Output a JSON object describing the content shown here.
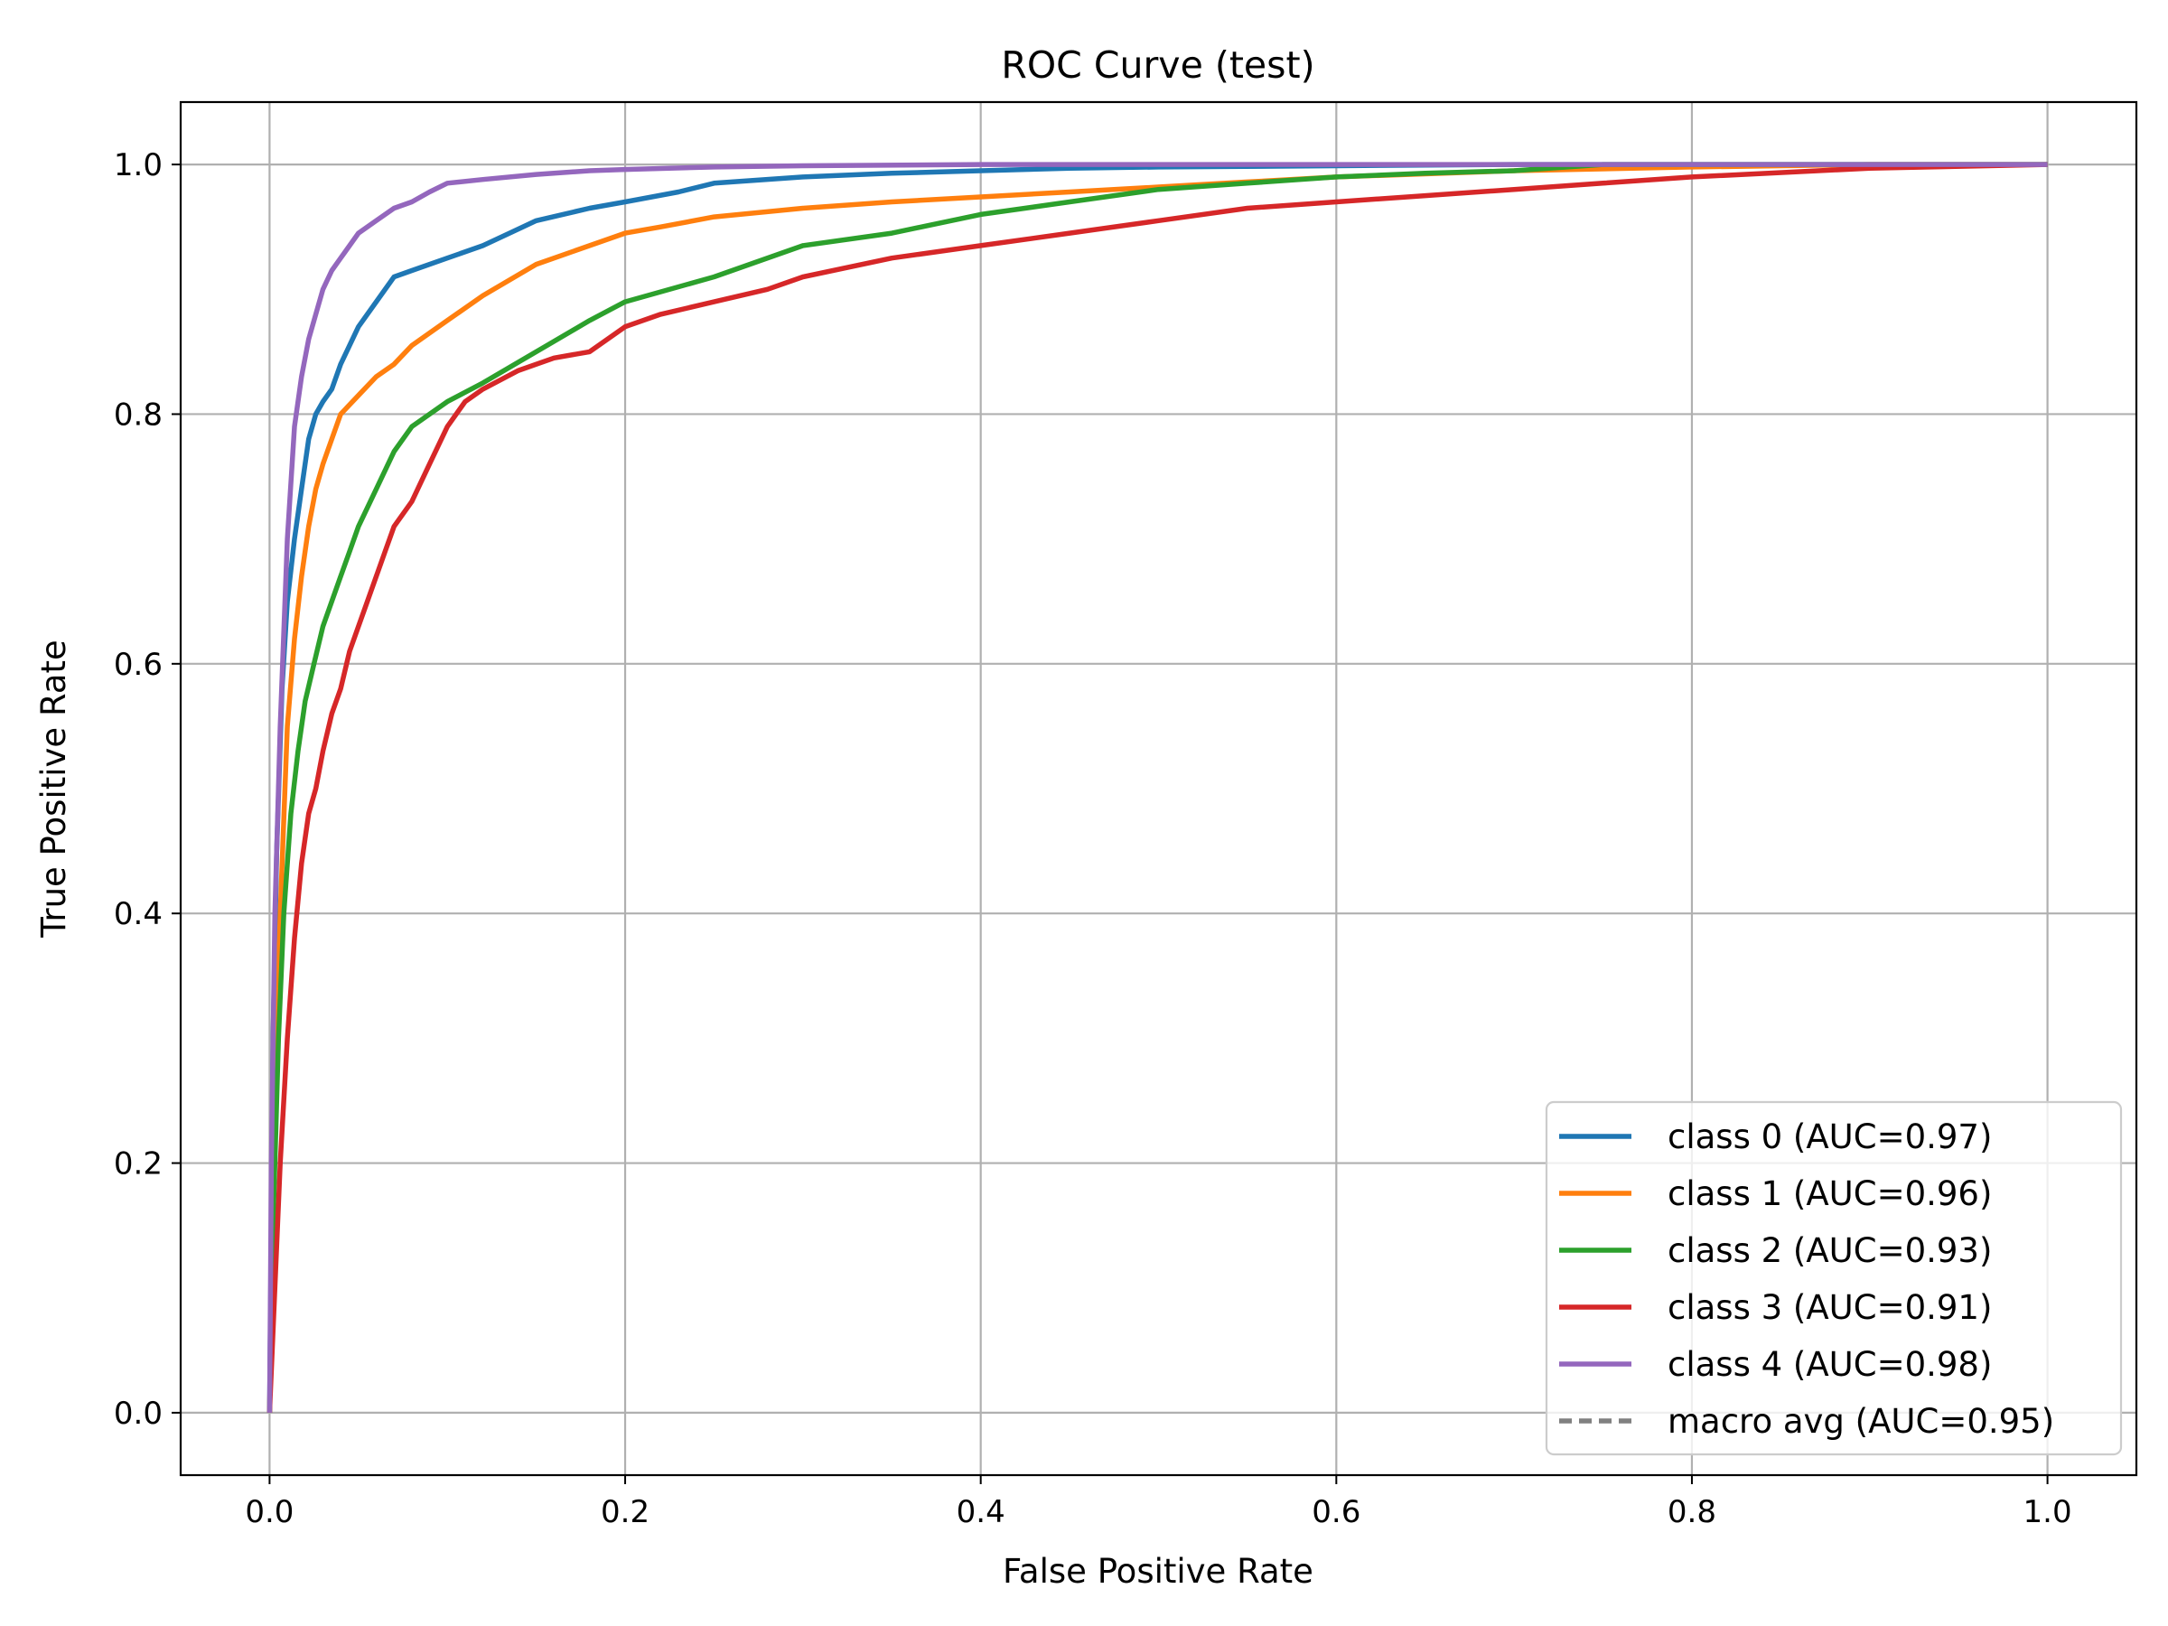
{
  "chart_data": {
    "type": "line",
    "title": "ROC Curve (test)",
    "xlabel": "False Positive Rate",
    "ylabel": "True Positive Rate",
    "xlim": [
      -0.05,
      1.05
    ],
    "ylim": [
      -0.05,
      1.05
    ],
    "grid": true,
    "legend_position": "lower-right",
    "x_ticks": [
      {
        "value": 0.0,
        "label": "0.0"
      },
      {
        "value": 0.2,
        "label": "0.2"
      },
      {
        "value": 0.4,
        "label": "0.4"
      },
      {
        "value": 0.6,
        "label": "0.6"
      },
      {
        "value": 0.8,
        "label": "0.8"
      },
      {
        "value": 1.0,
        "label": "1.0"
      }
    ],
    "y_ticks": [
      {
        "value": 0.0,
        "label": "0.0"
      },
      {
        "value": 0.2,
        "label": "0.2"
      },
      {
        "value": 0.4,
        "label": "0.4"
      },
      {
        "value": 0.6,
        "label": "0.6"
      },
      {
        "value": 0.8,
        "label": "0.8"
      },
      {
        "value": 1.0,
        "label": "1.0"
      }
    ],
    "series": [
      {
        "name": "class 0 (AUC=0.97)",
        "color": "#1f77b4",
        "dash": "solid",
        "x": [
          0,
          0.001,
          0.002,
          0.004,
          0.007,
          0.01,
          0.014,
          0.018,
          0.022,
          0.026,
          0.03,
          0.035,
          0.04,
          0.05,
          0.06,
          0.07,
          0.08,
          0.1,
          0.12,
          0.15,
          0.18,
          0.2,
          0.23,
          0.25,
          0.3,
          0.35,
          0.4,
          0.45,
          0.5,
          0.6,
          0.7,
          0.8,
          0.9,
          1.0
        ],
        "y": [
          0,
          0.15,
          0.3,
          0.45,
          0.58,
          0.65,
          0.7,
          0.74,
          0.78,
          0.8,
          0.81,
          0.82,
          0.84,
          0.87,
          0.89,
          0.91,
          0.915,
          0.925,
          0.935,
          0.955,
          0.965,
          0.97,
          0.978,
          0.985,
          0.99,
          0.993,
          0.995,
          0.997,
          0.998,
          0.999,
          1.0,
          1.0,
          1.0,
          1.0
        ]
      },
      {
        "name": "class 1 (AUC=0.96)",
        "color": "#ff7f0e",
        "dash": "solid",
        "x": [
          0,
          0.001,
          0.003,
          0.006,
          0.01,
          0.014,
          0.018,
          0.022,
          0.026,
          0.03,
          0.035,
          0.04,
          0.05,
          0.06,
          0.07,
          0.08,
          0.1,
          0.12,
          0.15,
          0.18,
          0.2,
          0.22,
          0.25,
          0.3,
          0.35,
          0.4,
          0.45,
          0.5,
          0.55,
          0.6,
          0.7,
          0.8,
          0.9,
          1.0
        ],
        "y": [
          0,
          0.1,
          0.25,
          0.4,
          0.55,
          0.62,
          0.67,
          0.71,
          0.74,
          0.76,
          0.78,
          0.8,
          0.815,
          0.83,
          0.84,
          0.855,
          0.875,
          0.895,
          0.92,
          0.935,
          0.945,
          0.95,
          0.958,
          0.965,
          0.97,
          0.974,
          0.978,
          0.982,
          0.986,
          0.99,
          0.995,
          0.998,
          1.0,
          1.0
        ]
      },
      {
        "name": "class 2 (AUC=0.93)",
        "color": "#2ca02c",
        "dash": "solid",
        "x": [
          0,
          0.002,
          0.005,
          0.008,
          0.012,
          0.016,
          0.02,
          0.025,
          0.03,
          0.035,
          0.04,
          0.045,
          0.05,
          0.06,
          0.07,
          0.08,
          0.09,
          0.1,
          0.12,
          0.15,
          0.18,
          0.2,
          0.25,
          0.3,
          0.35,
          0.4,
          0.45,
          0.5,
          0.55,
          0.6,
          0.65,
          0.7,
          0.75,
          0.8,
          0.9,
          1.0
        ],
        "y": [
          0,
          0.15,
          0.3,
          0.4,
          0.48,
          0.53,
          0.57,
          0.6,
          0.63,
          0.65,
          0.67,
          0.69,
          0.71,
          0.74,
          0.77,
          0.79,
          0.8,
          0.81,
          0.825,
          0.85,
          0.875,
          0.89,
          0.91,
          0.935,
          0.945,
          0.96,
          0.97,
          0.98,
          0.985,
          0.99,
          0.993,
          0.995,
          1.0,
          1.0,
          1.0,
          1.0
        ]
      },
      {
        "name": "class 3 (AUC=0.91)",
        "color": "#d62728",
        "dash": "solid",
        "x": [
          0,
          0.003,
          0.006,
          0.01,
          0.014,
          0.018,
          0.022,
          0.026,
          0.03,
          0.035,
          0.04,
          0.045,
          0.05,
          0.055,
          0.06,
          0.065,
          0.07,
          0.08,
          0.09,
          0.1,
          0.11,
          0.12,
          0.14,
          0.16,
          0.18,
          0.2,
          0.22,
          0.25,
          0.28,
          0.3,
          0.35,
          0.4,
          0.45,
          0.5,
          0.55,
          0.6,
          0.65,
          0.7,
          0.75,
          0.8,
          0.9,
          1.0
        ],
        "y": [
          0,
          0.1,
          0.2,
          0.3,
          0.38,
          0.44,
          0.48,
          0.5,
          0.53,
          0.56,
          0.58,
          0.61,
          0.63,
          0.65,
          0.67,
          0.69,
          0.71,
          0.73,
          0.76,
          0.79,
          0.81,
          0.82,
          0.835,
          0.845,
          0.85,
          0.87,
          0.88,
          0.89,
          0.9,
          0.91,
          0.925,
          0.935,
          0.945,
          0.955,
          0.965,
          0.97,
          0.975,
          0.98,
          0.985,
          0.99,
          0.997,
          1.0
        ]
      },
      {
        "name": "class 4 (AUC=0.98)",
        "color": "#9467bd",
        "dash": "solid",
        "x": [
          0,
          0.001,
          0.003,
          0.006,
          0.01,
          0.014,
          0.018,
          0.022,
          0.026,
          0.03,
          0.035,
          0.04,
          0.045,
          0.05,
          0.06,
          0.07,
          0.08,
          0.09,
          0.1,
          0.12,
          0.15,
          0.18,
          0.2,
          0.25,
          0.3,
          0.4,
          0.5,
          0.6,
          0.8,
          1.0
        ],
        "y": [
          0,
          0.2,
          0.4,
          0.55,
          0.7,
          0.79,
          0.83,
          0.86,
          0.88,
          0.9,
          0.915,
          0.925,
          0.935,
          0.945,
          0.955,
          0.965,
          0.97,
          0.978,
          0.985,
          0.988,
          0.992,
          0.995,
          0.996,
          0.998,
          0.999,
          1.0,
          1.0,
          1.0,
          1.0,
          1.0
        ]
      },
      {
        "name": "macro avg (AUC=0.95)",
        "color": "#808080",
        "dash": "dashed",
        "x": [],
        "y": []
      }
    ]
  }
}
